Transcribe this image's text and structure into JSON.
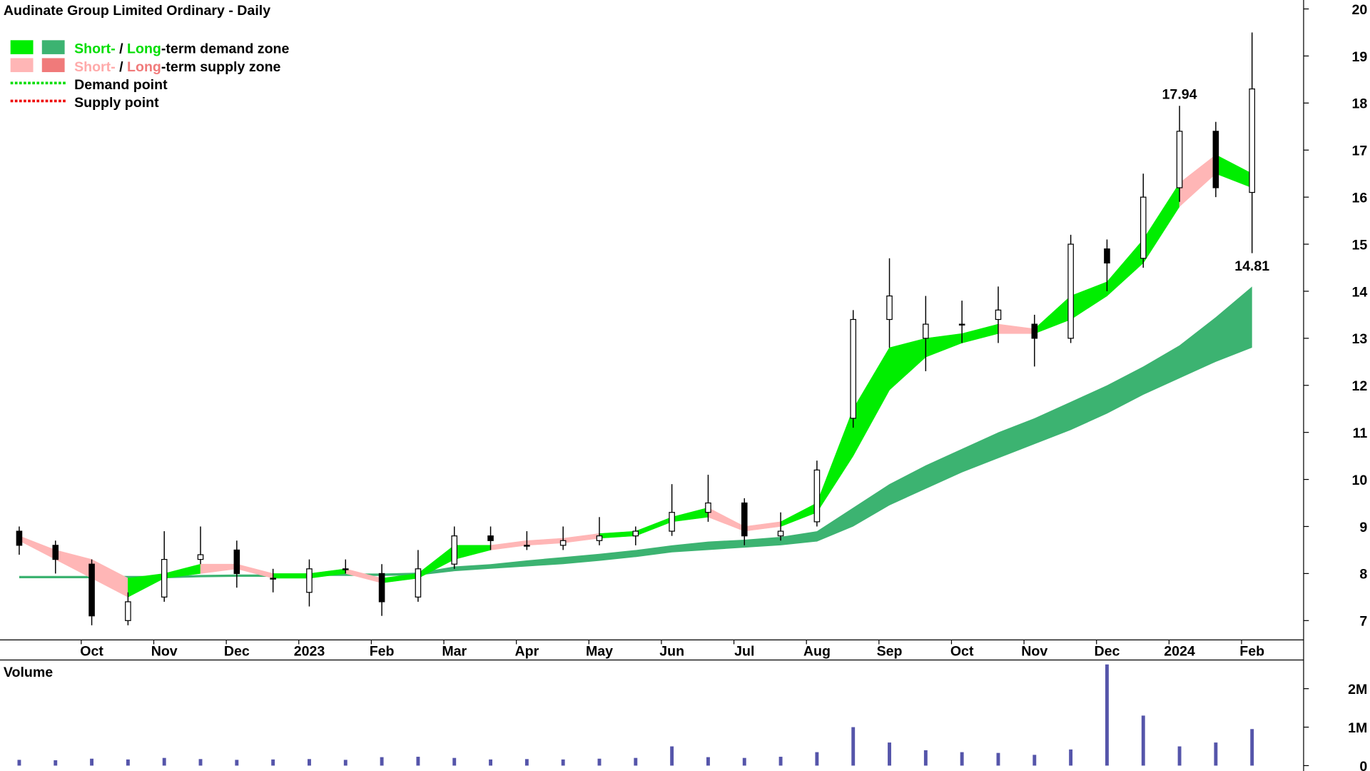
{
  "chart_data": [
    {
      "type": "candlestick",
      "title": "Audinate Group Limited Ordinary - Daily",
      "categories": [
        null,
        null,
        "Oct",
        null,
        "Nov",
        null,
        "Dec",
        null,
        "2023",
        null,
        "Feb",
        null,
        "Mar",
        null,
        "Apr",
        null,
        "May",
        null,
        "Jun",
        null,
        "Jul",
        null,
        "Aug",
        null,
        "Sep",
        null,
        "Oct",
        null,
        "Nov",
        null,
        "Dec",
        null,
        "2024",
        null,
        "Feb"
      ],
      "open": [
        8.9,
        8.6,
        8.2,
        7.0,
        7.5,
        8.3,
        8.5,
        7.9,
        7.6,
        8.1,
        8.0,
        7.5,
        8.2,
        8.8,
        8.6,
        8.6,
        8.7,
        8.8,
        8.9,
        9.3,
        9.5,
        8.8,
        9.1,
        11.3,
        13.4,
        13.0,
        13.3,
        13.4,
        13.3,
        13.0,
        14.9,
        14.7,
        16.2,
        17.4,
        16.1
      ],
      "high": [
        9.0,
        8.7,
        8.3,
        7.6,
        8.9,
        9.0,
        8.7,
        8.1,
        8.3,
        8.3,
        8.2,
        8.5,
        9.0,
        9.0,
        8.9,
        9.0,
        9.2,
        9.0,
        9.9,
        10.1,
        9.6,
        9.3,
        10.4,
        13.6,
        14.7,
        13.9,
        13.8,
        14.1,
        13.5,
        15.2,
        15.1,
        16.5,
        17.94,
        17.6,
        19.5
      ],
      "low": [
        8.4,
        8.0,
        6.9,
        6.9,
        7.4,
        8.2,
        7.7,
        7.6,
        7.3,
        8.0,
        7.1,
        7.4,
        8.1,
        8.5,
        8.5,
        8.5,
        8.6,
        8.6,
        8.8,
        9.1,
        8.6,
        8.7,
        9.0,
        11.1,
        12.8,
        12.3,
        12.9,
        12.9,
        12.4,
        12.9,
        14.0,
        14.5,
        15.9,
        16.0,
        14.81
      ],
      "close": [
        8.6,
        8.3,
        7.1,
        7.4,
        8.3,
        8.4,
        8.0,
        7.9,
        8.1,
        8.1,
        7.4,
        8.1,
        8.8,
        8.7,
        8.6,
        8.7,
        8.8,
        8.9,
        9.3,
        9.5,
        8.8,
        8.9,
        10.2,
        13.4,
        13.9,
        13.3,
        13.3,
        13.6,
        13.0,
        15.0,
        14.6,
        16.0,
        17.4,
        16.2,
        18.3
      ],
      "short_upper": [
        8.8,
        8.5,
        8.3,
        7.9,
        8.0,
        8.2,
        8.2,
        8.0,
        8.0,
        8.1,
        7.9,
        8.0,
        8.6,
        8.6,
        8.7,
        8.75,
        8.85,
        8.9,
        9.2,
        9.4,
        9.0,
        9.1,
        9.5,
        11.5,
        12.8,
        13.0,
        13.1,
        13.3,
        13.2,
        13.9,
        14.2,
        15.1,
        16.3,
        16.9,
        16.5
      ],
      "short_lower": [
        8.7,
        8.3,
        7.9,
        7.5,
        7.9,
        8.0,
        8.1,
        7.9,
        7.9,
        8.0,
        7.8,
        7.9,
        8.3,
        8.5,
        8.6,
        8.65,
        8.75,
        8.8,
        9.1,
        9.2,
        8.9,
        9.0,
        9.3,
        10.5,
        11.9,
        12.6,
        12.9,
        13.1,
        13.1,
        13.4,
        13.9,
        14.6,
        15.8,
        16.5,
        16.2
      ],
      "long_upper": [
        7.95,
        7.95,
        7.95,
        7.95,
        7.95,
        7.97,
        7.98,
        7.98,
        8.0,
        8.0,
        8.0,
        8.02,
        8.15,
        8.2,
        8.28,
        8.35,
        8.42,
        8.5,
        8.6,
        8.68,
        8.72,
        8.78,
        8.9,
        9.4,
        9.9,
        10.3,
        10.65,
        11.0,
        11.3,
        11.65,
        12.0,
        12.4,
        12.85,
        13.45,
        14.1
      ],
      "long_lower": [
        7.9,
        7.9,
        7.9,
        7.9,
        7.9,
        7.92,
        7.93,
        7.93,
        7.95,
        7.95,
        7.95,
        7.96,
        8.05,
        8.1,
        8.15,
        8.2,
        8.27,
        8.35,
        8.45,
        8.5,
        8.55,
        8.6,
        8.68,
        9.0,
        9.45,
        9.8,
        10.15,
        10.45,
        10.75,
        11.05,
        11.4,
        11.8,
        12.15,
        12.5,
        12.8
      ],
      "short_demand_color": "#00ee00",
      "long_demand_color": "#3cb371",
      "short_supply_color": "#ffb6b6",
      "long_supply_color": "#f07a7a",
      "ylim": [
        6.59,
        20.19
      ],
      "yticks": [
        7,
        8,
        9,
        10,
        11,
        12,
        13,
        14,
        15,
        16,
        17,
        18,
        19,
        20
      ],
      "annotations": [
        {
          "value": 17.94,
          "label": "17.94"
        },
        {
          "value": 14.81,
          "label": "14.81"
        }
      ],
      "legend": [
        {
          "swatches": [
            "#00ee00",
            "#3cb371"
          ],
          "parts": [
            {
              "text": "Short-",
              "color": "#00dd00"
            },
            {
              "text": " / ",
              "color": "#000000"
            },
            {
              "text": "Long",
              "color": "#00dd00"
            },
            {
              "text": "-term demand zone",
              "color": "#000000"
            }
          ]
        },
        {
          "swatches": [
            "#ffb6b6",
            "#f07a7a"
          ],
          "parts": [
            {
              "text": "Short-",
              "color": "#ffaaaa"
            },
            {
              "text": " / ",
              "color": "#000000"
            },
            {
              "text": "Long",
              "color": "#f07a7a"
            },
            {
              "text": "-term supply zone",
              "color": "#000000"
            }
          ]
        },
        {
          "dots": "#00dd00",
          "parts": [
            {
              "text": "Demand point",
              "color": "#000000"
            }
          ]
        },
        {
          "dots": "#ee0000",
          "parts": [
            {
              "text": "Supply point",
              "color": "#000000"
            }
          ]
        }
      ]
    },
    {
      "type": "bar",
      "title": "Volume",
      "title_color": "#4b0082",
      "color": "#5555aa",
      "values": [
        150000,
        140000,
        180000,
        160000,
        200000,
        170000,
        150000,
        160000,
        170000,
        150000,
        220000,
        230000,
        200000,
        160000,
        170000,
        160000,
        180000,
        200000,
        500000,
        220000,
        200000,
        230000,
        350000,
        1000000,
        600000,
        400000,
        350000,
        330000,
        280000,
        420000,
        2630000,
        1300000,
        500000,
        600000,
        950000
      ],
      "ylim": [
        -140000,
        2700000
      ],
      "yticks": [
        0,
        {
          "value": 1000000,
          "label": "1M"
        },
        {
          "value": 2000000,
          "label": "2M"
        }
      ]
    }
  ]
}
